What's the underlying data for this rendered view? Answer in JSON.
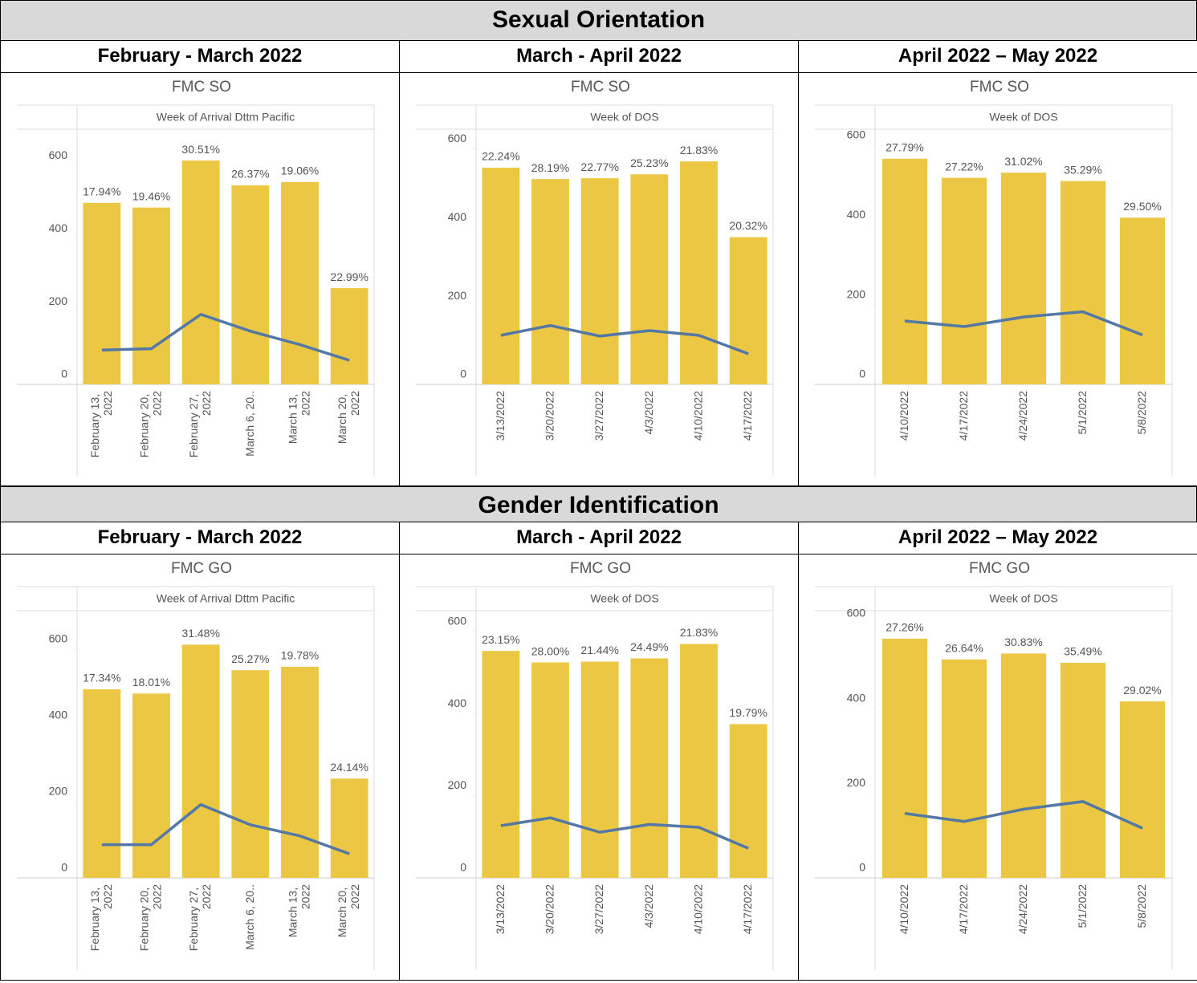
{
  "sections": [
    {
      "title": "Sexual Orientation",
      "periods": [
        "February - March 2022",
        "March - April 2022",
        "April 2022 – May 2022"
      ]
    },
    {
      "title": "Gender Identification",
      "periods": [
        "February - March 2022",
        "March - April 2022",
        "April 2022 – May 2022"
      ]
    }
  ],
  "chart_data": [
    {
      "type": "bar",
      "title": "FMC SO",
      "x_label": "Week of Arrival Dttm Pacific",
      "categories": [
        "February 13, 2022",
        "February 20, 2022",
        "February 27, 2022",
        "March 6, 20..",
        "March 13, 2022",
        "March 20, 2022"
      ],
      "series": [
        {
          "type": "bar",
          "color": "#ebc744",
          "values": [
            498,
            485,
            614,
            546,
            555,
            264
          ]
        },
        {
          "type": "line",
          "color": "#5478a6",
          "values": [
            94,
            98,
            192,
            146,
            109,
            66
          ]
        }
      ],
      "percent_labels": [
        "17.94%",
        "19.46%",
        "30.51%",
        "26.37%",
        "19.06%",
        "22.99%"
      ],
      "ylim": [
        0,
        700
      ],
      "yticks": [
        0,
        200,
        400,
        600
      ]
    },
    {
      "type": "bar",
      "title": "FMC SO",
      "x_label": "Week of DOS",
      "categories": [
        "3/13/2022",
        "3/20/2022",
        "3/27/2022",
        "4/3/2022",
        "4/10/2022",
        "4/17/2022"
      ],
      "series": [
        {
          "type": "bar",
          "color": "#ebc744",
          "values": [
            552,
            523,
            525,
            535,
            568,
            375
          ]
        },
        {
          "type": "line",
          "color": "#5478a6",
          "values": [
            125,
            150,
            123,
            137,
            125,
            78
          ]
        }
      ],
      "percent_labels": [
        "22.24%",
        "28.19%",
        "22.77%",
        "25.23%",
        "21.83%",
        "20.32%"
      ],
      "ylim": [
        0,
        650
      ],
      "yticks": [
        0,
        200,
        400,
        600
      ]
    },
    {
      "type": "bar",
      "title": "FMC SO",
      "x_label": "Week of DOS",
      "categories": [
        "4/10/2022",
        "4/17/2022",
        "4/24/2022",
        "5/1/2022",
        "5/8/2022"
      ],
      "series": [
        {
          "type": "bar",
          "color": "#ebc744",
          "values": [
            566,
            518,
            531,
            510,
            418
          ]
        },
        {
          "type": "line",
          "color": "#5478a6",
          "values": [
            159,
            145,
            169,
            182,
            124
          ]
        }
      ],
      "percent_labels": [
        "27.79%",
        "27.22%",
        "31.02%",
        "35.29%",
        "29.50%"
      ],
      "ylim": [
        0,
        640
      ],
      "yticks": [
        0,
        200,
        400,
        600
      ]
    },
    {
      "type": "bar",
      "title": "FMC GO",
      "x_label": "Week of Arrival Dttm Pacific",
      "categories": [
        "February 13, 2022",
        "February 20, 2022",
        "February 27, 2022",
        "March 6, 20..",
        "March 13, 2022",
        "March 20, 2022"
      ],
      "series": [
        {
          "type": "bar",
          "color": "#ebc744",
          "values": [
            494,
            483,
            611,
            544,
            553,
            260
          ]
        },
        {
          "type": "line",
          "color": "#5478a6",
          "values": [
            87,
            87,
            192,
            139,
            110,
            63
          ]
        }
      ],
      "percent_labels": [
        "17.34%",
        "18.01%",
        "31.48%",
        "25.27%",
        "19.78%",
        "24.14%"
      ],
      "ylim": [
        0,
        700
      ],
      "yticks": [
        0,
        200,
        400,
        600
      ]
    },
    {
      "type": "bar",
      "title": "FMC GO",
      "x_label": "Week of DOS",
      "categories": [
        "3/13/2022",
        "3/20/2022",
        "3/27/2022",
        "4/3/2022",
        "4/10/2022",
        "4/17/2022"
      ],
      "series": [
        {
          "type": "bar",
          "color": "#ebc744",
          "values": [
            552,
            524,
            526,
            534,
            569,
            374
          ]
        },
        {
          "type": "line",
          "color": "#5478a6",
          "values": [
            127,
            146,
            111,
            130,
            123,
            72
          ]
        }
      ],
      "percent_labels": [
        "23.15%",
        "28.00%",
        "21.44%",
        "24.49%",
        "21.83%",
        "19.79%"
      ],
      "ylim": [
        0,
        650
      ],
      "yticks": [
        0,
        200,
        400,
        600
      ]
    },
    {
      "type": "bar",
      "title": "FMC GO",
      "x_label": "Week of DOS",
      "categories": [
        "4/10/2022",
        "4/17/2022",
        "4/24/2022",
        "5/1/2022",
        "5/8/2022"
      ],
      "series": [
        {
          "type": "bar",
          "color": "#ebc744",
          "values": [
            564,
            515,
            529,
            507,
            416
          ]
        },
        {
          "type": "line",
          "color": "#5478a6",
          "values": [
            152,
            133,
            162,
            180,
            117
          ]
        }
      ],
      "percent_labels": [
        "27.26%",
        "26.64%",
        "30.83%",
        "35.49%",
        "29.02%"
      ],
      "ylim": [
        0,
        630
      ],
      "yticks": [
        0,
        200,
        400,
        600
      ]
    }
  ]
}
